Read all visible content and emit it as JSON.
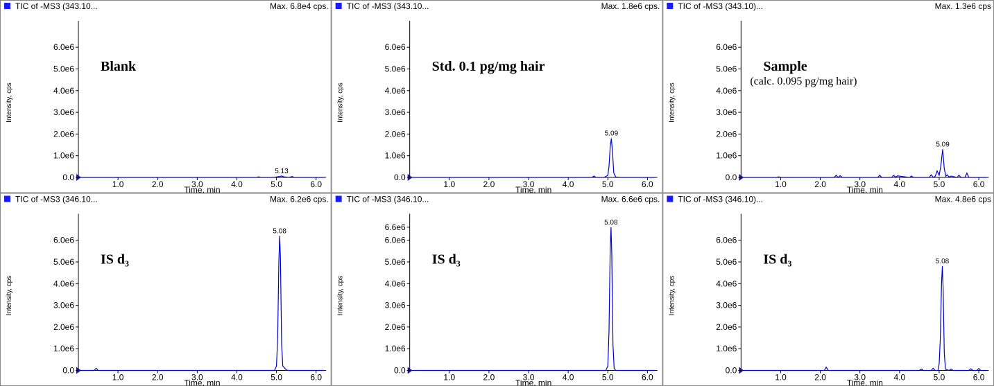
{
  "chart_data": [
    {
      "type": "line",
      "header_left": "TIC of -MS3 (343.10...",
      "header_right": "Max. 6.8e4 cps.",
      "annotation": "Blank",
      "y_label": "Intensity, cps",
      "x_label": "Time, min",
      "peak": 5.13,
      "color": "#0000cc",
      "x": [
        0.05,
        4.5,
        4.55,
        4.6,
        4.9,
        5.0,
        5.08,
        5.13,
        5.18,
        5.3,
        5.4,
        5.45,
        5.5,
        6.2
      ],
      "values": [
        0,
        0,
        30000,
        0,
        0,
        20000,
        40000,
        68000,
        30000,
        0,
        40000,
        0,
        0,
        0
      ],
      "xlim": [
        0,
        6.25
      ],
      "ylim": [
        0,
        6900000
      ],
      "xticks": [
        {
          "value": 1,
          "label": "1.0"
        },
        {
          "value": 2,
          "label": "2.0"
        },
        {
          "value": 3,
          "label": "3.0"
        },
        {
          "value": 4,
          "label": "4.0"
        },
        {
          "value": 5,
          "label": "5.0"
        },
        {
          "value": 6,
          "label": "6.0"
        }
      ],
      "yticks": [
        {
          "value": 0,
          "label": "0.0"
        },
        {
          "value": 1000000,
          "label": "1.0e6"
        },
        {
          "value": 2000000,
          "label": "2.0e6"
        },
        {
          "value": 3000000,
          "label": "3.0e6"
        },
        {
          "value": 4000000,
          "label": "4.0e6"
        },
        {
          "value": 5000000,
          "label": "5.0e6"
        },
        {
          "value": 6000000,
          "label": "6.0e6"
        }
      ]
    },
    {
      "type": "line",
      "header_left": "TIC of -MS3 (343.10...",
      "header_right": "Max. 1.8e6 cps.",
      "annotation": "Std. 0.1 pg/mg hair",
      "y_label": "Intensity, cps",
      "x_label": "Time, min",
      "peak": 5.09,
      "color": "#0000cc",
      "x": [
        0.05,
        4.6,
        4.65,
        4.7,
        4.9,
        4.95,
        5.0,
        5.03,
        5.06,
        5.09,
        5.12,
        5.15,
        5.2,
        5.3,
        6.2
      ],
      "values": [
        0,
        0,
        60000,
        0,
        0,
        40000,
        100000,
        500000,
        1400000,
        1800000,
        1100000,
        200000,
        20000,
        0,
        0
      ],
      "xlim": [
        0,
        6.25
      ],
      "ylim": [
        0,
        6900000
      ],
      "xticks": [
        {
          "value": 1,
          "label": "1.0"
        },
        {
          "value": 2,
          "label": "2.0"
        },
        {
          "value": 3,
          "label": "3.0"
        },
        {
          "value": 4,
          "label": "4.0"
        },
        {
          "value": 5,
          "label": "5.0"
        },
        {
          "value": 6,
          "label": "6.0"
        }
      ],
      "yticks": [
        {
          "value": 0,
          "label": "0.0"
        },
        {
          "value": 1000000,
          "label": "1.0e6"
        },
        {
          "value": 2000000,
          "label": "2.0e6"
        },
        {
          "value": 3000000,
          "label": "3.0e6"
        },
        {
          "value": 4000000,
          "label": "4.0e6"
        },
        {
          "value": 5000000,
          "label": "5.0e6"
        },
        {
          "value": 6000000,
          "label": "6.0e6"
        }
      ]
    },
    {
      "type": "line",
      "header_left": "TIC of -MS3 (343.10)...",
      "header_right": "Max. 1.3e6 cps",
      "annotation": "Sample",
      "annotation_sub": "(calc. 0.095 pg/mg hair)",
      "y_label": "Intensity, cps",
      "x_label": "Time, min",
      "peak": 5.09,
      "color": "#0000cc",
      "x": [
        0.05,
        0.9,
        0.95,
        1.0,
        2.35,
        2.4,
        2.45,
        2.5,
        2.55,
        3.45,
        3.5,
        3.55,
        3.8,
        3.85,
        3.9,
        3.95,
        4.25,
        4.3,
        4.35,
        4.75,
        4.8,
        4.85,
        4.9,
        4.95,
        5.0,
        5.04,
        5.09,
        5.13,
        5.17,
        5.2,
        5.25,
        5.3,
        5.45,
        5.5,
        5.55,
        5.65,
        5.7,
        5.75,
        6.2
      ],
      "values": [
        0,
        0,
        30000,
        0,
        0,
        100000,
        0,
        80000,
        0,
        0,
        100000,
        0,
        0,
        90000,
        20000,
        70000,
        0,
        60000,
        0,
        0,
        120000,
        0,
        50000,
        300000,
        100000,
        500000,
        1300000,
        400000,
        50000,
        120000,
        20000,
        60000,
        0,
        100000,
        0,
        0,
        200000,
        0,
        0
      ],
      "xlim": [
        0,
        6.25
      ],
      "ylim": [
        0,
        6900000
      ],
      "xticks": [
        {
          "value": 1,
          "label": "1.0"
        },
        {
          "value": 2,
          "label": "2.0"
        },
        {
          "value": 3,
          "label": "3.0"
        },
        {
          "value": 4,
          "label": "4.0"
        },
        {
          "value": 5,
          "label": "5.0"
        },
        {
          "value": 6,
          "label": "6.0"
        }
      ],
      "yticks": [
        {
          "value": 0,
          "label": "0.0"
        },
        {
          "value": 1000000,
          "label": "1.0e6"
        },
        {
          "value": 2000000,
          "label": "2.0e6"
        },
        {
          "value": 3000000,
          "label": "3.0e6"
        },
        {
          "value": 4000000,
          "label": "4.0e6"
        },
        {
          "value": 5000000,
          "label": "5.0e6"
        },
        {
          "value": 6000000,
          "label": "6.0e6"
        }
      ]
    },
    {
      "type": "line",
      "header_left": "TIC of -MS3 (346.10...",
      "header_right": "Max. 6.2e6 cps.",
      "annotation": "IS d₃",
      "y_label": "Intensity, cps",
      "x_label": "Time, min",
      "peak": 5.08,
      "color": "#0000cc",
      "x": [
        0.05,
        0.4,
        0.45,
        0.5,
        4.95,
        5.0,
        5.03,
        5.06,
        5.08,
        5.1,
        5.13,
        5.16,
        5.2,
        5.25,
        5.3,
        6.2
      ],
      "values": [
        0,
        0,
        100000,
        0,
        0,
        200000,
        1500000,
        5000000,
        6200000,
        5200000,
        1200000,
        200000,
        120000,
        20000,
        0,
        0
      ],
      "xlim": [
        0,
        6.25
      ],
      "ylim": [
        0,
        6900000
      ],
      "xticks": [
        {
          "value": 1,
          "label": "1.0"
        },
        {
          "value": 2,
          "label": "2.0"
        },
        {
          "value": 3,
          "label": "3.0"
        },
        {
          "value": 4,
          "label": "4.0"
        },
        {
          "value": 5,
          "label": "5.0"
        },
        {
          "value": 6,
          "label": "6.0"
        }
      ],
      "yticks": [
        {
          "value": 0,
          "label": "0.0"
        },
        {
          "value": 1000000,
          "label": "1.0e6"
        },
        {
          "value": 2000000,
          "label": "2.0e6"
        },
        {
          "value": 3000000,
          "label": "3.0e6"
        },
        {
          "value": 4000000,
          "label": "4.0e6"
        },
        {
          "value": 5000000,
          "label": "5.0e6"
        },
        {
          "value": 6000000,
          "label": "6.0e6"
        }
      ]
    },
    {
      "type": "line",
      "header_left": "TIC of -MS3 (346.10...",
      "header_right": "Max. 6.6e6 cps.",
      "annotation": "IS d₃",
      "y_label": "Intensity, cps",
      "x_label": "Time, min",
      "peak": 5.08,
      "color": "#0000cc",
      "x": [
        0.05,
        4.95,
        5.0,
        5.03,
        5.06,
        5.08,
        5.1,
        5.13,
        5.16,
        5.2,
        6.2
      ],
      "values": [
        0,
        0,
        200000,
        1800000,
        5500000,
        6600000,
        5400000,
        1200000,
        100000,
        0,
        0
      ],
      "xlim": [
        0,
        6.25
      ],
      "ylim": [
        0,
        6900000
      ],
      "xticks": [
        {
          "value": 1,
          "label": "1.0"
        },
        {
          "value": 2,
          "label": "2.0"
        },
        {
          "value": 3,
          "label": "3.0"
        },
        {
          "value": 4,
          "label": "4.0"
        },
        {
          "value": 5,
          "label": "5.0"
        },
        {
          "value": 6,
          "label": "6.0"
        }
      ],
      "yticks": [
        {
          "value": 0,
          "label": "0.0"
        },
        {
          "value": 1000000,
          "label": "1.0e6"
        },
        {
          "value": 2000000,
          "label": "2.0e6"
        },
        {
          "value": 3000000,
          "label": "3.0e6"
        },
        {
          "value": 4000000,
          "label": "4.0e6"
        },
        {
          "value": 5000000,
          "label": "5.0e6"
        },
        {
          "value": 6000000,
          "label": "6.0e6"
        },
        {
          "value": 6600000,
          "label": "6.6e6"
        }
      ]
    },
    {
      "type": "line",
      "header_left": "TIC of -MS3 (346.10)...",
      "header_right": "Max. 4.8e6 cps",
      "annotation": "IS d₃",
      "y_label": "Intensity, cps",
      "x_label": "Time, min",
      "peak": 5.08,
      "color": "#0000cc",
      "x": [
        0.05,
        2.1,
        2.15,
        2.2,
        4.5,
        4.55,
        4.6,
        4.8,
        4.85,
        4.9,
        4.97,
        5.0,
        5.03,
        5.06,
        5.08,
        5.1,
        5.13,
        5.16,
        5.25,
        5.3,
        5.35,
        5.75,
        5.8,
        5.85,
        5.95,
        6.0,
        6.05,
        6.2
      ],
      "values": [
        0,
        0,
        150000,
        0,
        0,
        60000,
        0,
        0,
        100000,
        0,
        0,
        300000,
        1500000,
        4000000,
        4800000,
        3800000,
        800000,
        50000,
        0,
        60000,
        0,
        0,
        80000,
        0,
        0,
        90000,
        0,
        0
      ],
      "xlim": [
        0,
        6.25
      ],
      "ylim": [
        0,
        6900000
      ],
      "xticks": [
        {
          "value": 1,
          "label": "1.0"
        },
        {
          "value": 2,
          "label": "2.0"
        },
        {
          "value": 3,
          "label": "3.0"
        },
        {
          "value": 4,
          "label": "4.0"
        },
        {
          "value": 5,
          "label": "5.0"
        },
        {
          "value": 6,
          "label": "6.0"
        }
      ],
      "yticks": [
        {
          "value": 0,
          "label": "0.0"
        },
        {
          "value": 1000000,
          "label": "1.0e6"
        },
        {
          "value": 2000000,
          "label": "2.0e6"
        },
        {
          "value": 3000000,
          "label": "3.0e6"
        },
        {
          "value": 4000000,
          "label": "4.0e6"
        },
        {
          "value": 5000000,
          "label": "5.0e6"
        },
        {
          "value": 6000000,
          "label": "6.0e6"
        }
      ]
    }
  ]
}
